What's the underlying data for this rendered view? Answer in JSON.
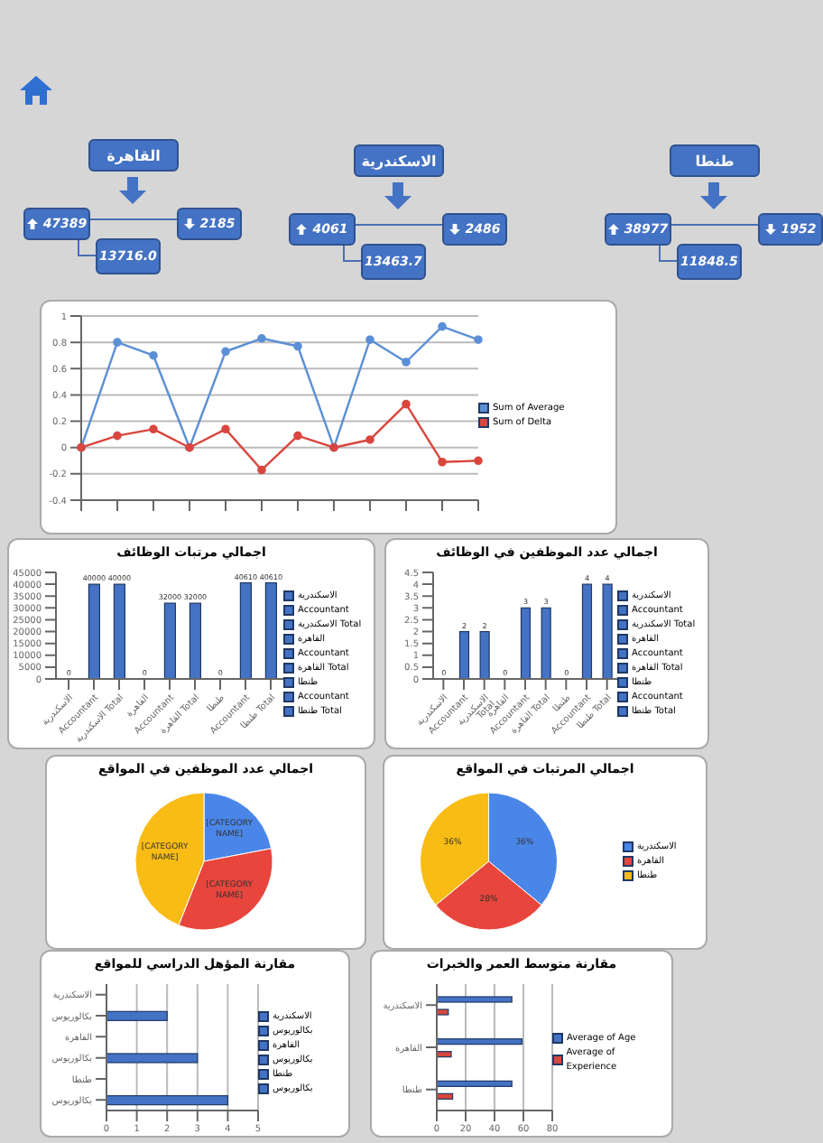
{
  "chart_data": [
    {
      "type": "other",
      "title": "القاهرة",
      "annotations": [
        "47389",
        "2185",
        "13716.0"
      ]
    },
    {
      "type": "other",
      "title": "الاسكندرية",
      "annotations": [
        "4061",
        "2486",
        "13463.7"
      ]
    },
    {
      "type": "other",
      "title": "طنطا",
      "annotations": [
        "38977",
        "1952",
        "11848.5"
      ]
    },
    {
      "type": "line",
      "categories": [
        null,
        null,
        null,
        null,
        null,
        null,
        null,
        null,
        null,
        null,
        null,
        null
      ],
      "series": [
        {
          "name": "Sum of Average",
          "color": "#5b8fd6",
          "values": [
            0,
            0.8,
            0.7,
            0,
            0.73,
            0.83,
            0.77,
            0,
            0.82,
            0.65,
            0.92,
            0.82
          ]
        },
        {
          "name": "Sum of Delta",
          "color": "#d9463e",
          "values": [
            0,
            0.09,
            0.14,
            0,
            0.14,
            -0.17,
            0.09,
            0,
            0.06,
            0.33,
            -0.11,
            -0.1
          ]
        }
      ],
      "ylim": [
        -0.4,
        1
      ],
      "yticks": [
        -0.4,
        -0.2,
        0,
        0.2,
        0.4,
        0.6,
        0.8,
        1
      ],
      "grid": "y",
      "legend": "right",
      "marker": "circle"
    },
    {
      "type": "bar",
      "stacked": true,
      "title": "اجمالي مرتبات الوظائف",
      "categories": [
        "الاسكندرية",
        "Accountant",
        "الاسكندرية Total",
        "القاهرة",
        "Accountant",
        "القاهرة Total",
        "طنطا",
        "Accountant",
        "طنطا Total"
      ],
      "series": [
        {
          "name": "الاسكندرية",
          "color": "#4472c4",
          "values": [
            0,
            null,
            null,
            null,
            null,
            null,
            null,
            null,
            null
          ]
        },
        {
          "name": "Accountant",
          "color": "#4472c4",
          "values": [
            null,
            40000,
            null,
            null,
            null,
            null,
            null,
            null,
            null
          ]
        },
        {
          "name": "الاسكندرية Total",
          "color": "#4472c4",
          "values": [
            null,
            null,
            40000,
            null,
            null,
            null,
            null,
            null,
            null
          ]
        },
        {
          "name": "القاهرة",
          "color": "#4472c4",
          "values": [
            null,
            null,
            null,
            0,
            null,
            null,
            null,
            null,
            null
          ]
        },
        {
          "name": "Accountant",
          "color": "#4472c4",
          "values": [
            null,
            null,
            null,
            null,
            32000,
            null,
            null,
            null,
            null
          ]
        },
        {
          "name": "القاهرة Total",
          "color": "#4472c4",
          "values": [
            null,
            null,
            null,
            null,
            null,
            32000,
            null,
            null,
            null
          ]
        },
        {
          "name": "طنطا",
          "color": "#4472c4",
          "values": [
            null,
            null,
            null,
            null,
            null,
            null,
            0,
            null,
            null
          ]
        },
        {
          "name": "Accountant",
          "color": "#4472c4",
          "values": [
            null,
            null,
            null,
            null,
            null,
            null,
            null,
            40610,
            null
          ]
        },
        {
          "name": "طنطا Total",
          "color": "#4472c4",
          "values": [
            null,
            null,
            null,
            null,
            null,
            null,
            null,
            null,
            40610
          ]
        }
      ],
      "ylim": [
        0,
        45000
      ],
      "yticks": [
        0,
        5000,
        10000,
        15000,
        20000,
        25000,
        30000,
        35000,
        40000,
        45000
      ],
      "data_labels": true,
      "legend": "right"
    },
    {
      "type": "bar",
      "stacked": true,
      "title": "اجمالي عدد الموظفين في الوظائف",
      "categories": [
        "الاسكندرية",
        "Accountant",
        "الاسكندرية Total",
        "القاهرة",
        "Accountant",
        "القاهرة Total",
        "طنطا",
        "Accountant",
        "طنطا Total"
      ],
      "series": [
        {
          "name": "الاسكندرية",
          "color": "#4472c4",
          "values": [
            0,
            null,
            null,
            null,
            null,
            null,
            null,
            null,
            null
          ]
        },
        {
          "name": "Accountant",
          "color": "#4472c4",
          "values": [
            null,
            2,
            null,
            null,
            null,
            null,
            null,
            null,
            null
          ]
        },
        {
          "name": "الاسكندرية Total",
          "color": "#4472c4",
          "values": [
            null,
            null,
            2,
            null,
            null,
            null,
            null,
            null,
            null
          ]
        },
        {
          "name": "القاهرة",
          "color": "#4472c4",
          "values": [
            null,
            null,
            null,
            0,
            null,
            null,
            null,
            null,
            null
          ]
        },
        {
          "name": "Accountant",
          "color": "#4472c4",
          "values": [
            null,
            null,
            null,
            null,
            3,
            null,
            null,
            null,
            null
          ]
        },
        {
          "name": "القاهرة Total",
          "color": "#4472c4",
          "values": [
            null,
            null,
            null,
            null,
            null,
            3,
            null,
            null,
            null
          ]
        },
        {
          "name": "طنطا",
          "color": "#4472c4",
          "values": [
            null,
            null,
            null,
            null,
            null,
            null,
            0,
            null,
            null
          ]
        },
        {
          "name": "Accountant",
          "color": "#4472c4",
          "values": [
            null,
            null,
            null,
            null,
            null,
            null,
            null,
            4,
            null
          ]
        },
        {
          "name": "طنطا Total",
          "color": "#4472c4",
          "values": [
            null,
            null,
            null,
            null,
            null,
            null,
            null,
            null,
            4
          ]
        }
      ],
      "ylim": [
        0,
        4.5
      ],
      "yticks": [
        0,
        0.5,
        1,
        1.5,
        2,
        2.5,
        3,
        3.5,
        4,
        4.5
      ],
      "data_labels": true,
      "legend": "right"
    },
    {
      "type": "pie",
      "title": "اجمالي عدد الموظفين في المواقع",
      "categories": [
        null,
        null,
        null
      ],
      "values": [
        22,
        34,
        44
      ],
      "colors": [
        "#4a86e8",
        "#e8453c",
        "#f9bc15"
      ],
      "value_labels": [
        "[CATEGORY NAME]",
        "[CATEGORY NAME]",
        "[CATEGORY NAME]"
      ]
    },
    {
      "type": "pie",
      "title": "اجمالي المرتبات في المواقع",
      "categories": [
        "الاسكندرية",
        "القاهرة",
        "طنطا"
      ],
      "values": [
        36,
        28,
        36
      ],
      "colors": [
        "#4a86e8",
        "#e8453c",
        "#f9bc15"
      ],
      "value_labels": [
        "36%",
        "28%",
        "36%"
      ],
      "legend": "right"
    },
    {
      "type": "bar",
      "orientation": "horizontal",
      "stacked": true,
      "title": "مقارنة المؤهل الدراسي للمواقع",
      "categories": [
        "الاسكندرية",
        "بكالوريوس",
        "القاهرة",
        "بكالوريوس",
        "طنطا",
        "بكالوريوس"
      ],
      "series": [
        {
          "name": "الاسكندرية",
          "color": "#4472c4",
          "values": [
            null,
            null,
            null,
            null,
            null,
            null
          ]
        },
        {
          "name": "بكالوريوس",
          "color": "#4472c4",
          "values": [
            null,
            2,
            null,
            null,
            null,
            null
          ]
        },
        {
          "name": "القاهرة",
          "color": "#4472c4",
          "values": [
            null,
            null,
            null,
            null,
            null,
            null
          ]
        },
        {
          "name": "بكالوريوس",
          "color": "#4472c4",
          "values": [
            null,
            null,
            null,
            3,
            null,
            null
          ]
        },
        {
          "name": "طنطا",
          "color": "#4472c4",
          "values": [
            null,
            null,
            null,
            null,
            null,
            null
          ]
        },
        {
          "name": "بكالوريوس",
          "color": "#4472c4",
          "values": [
            null,
            null,
            null,
            null,
            null,
            4
          ]
        }
      ],
      "xlim": [
        0,
        5
      ],
      "xticks": [
        0,
        1,
        2,
        3,
        4,
        5
      ],
      "grid": "x",
      "legend": "right"
    },
    {
      "type": "bar",
      "orientation": "horizontal",
      "title": "مقارنة متوسط العمر والخبرات",
      "categories": [
        "الاسكندرية",
        "القاهرة",
        "طنطا"
      ],
      "series": [
        {
          "name": "Average of Age",
          "color": "#4472c4",
          "values": [
            52,
            59,
            52
          ]
        },
        {
          "name": "Average of Experience",
          "color": "#d9463e",
          "values": [
            8,
            10,
            11
          ]
        }
      ],
      "xlim": [
        0,
        80
      ],
      "xticks": [
        0,
        20,
        40,
        60,
        80
      ],
      "grid": "x",
      "legend": "right"
    }
  ]
}
